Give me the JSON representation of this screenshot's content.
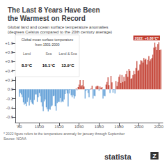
{
  "chart_data": {
    "type": "bar",
    "title": "The Last 8 Years Have Been\nthe Warmest on Record",
    "subtitle": "Global land and ocean surface temperature anomalies\n(degrees Celsius compared to the 20th century average)",
    "footnotes": [
      "* 2022 figure refers to the temperature anomaly for january through September",
      "Source: NOAA"
    ],
    "inset": {
      "title": "Global mean surface temperature\nfrom 1901-2000",
      "labels": [
        "Land",
        "Sea",
        "Land & Sea"
      ],
      "values": [
        "8.5°C",
        "16.1°C",
        "13.9°C"
      ]
    },
    "annotation": {
      "text": "2022: +0.86°C*",
      "color": "#c0392b"
    },
    "branding": "statista",
    "logo": "Z",
    "x": [
      1880,
      1881,
      1882,
      1883,
      1884,
      1885,
      1886,
      1887,
      1888,
      1889,
      1890,
      1891,
      1892,
      1893,
      1894,
      1895,
      1896,
      1897,
      1898,
      1899,
      1900,
      1901,
      1902,
      1903,
      1904,
      1905,
      1906,
      1907,
      1908,
      1909,
      1910,
      1911,
      1912,
      1913,
      1914,
      1915,
      1916,
      1917,
      1918,
      1919,
      1920,
      1921,
      1922,
      1923,
      1924,
      1925,
      1926,
      1927,
      1928,
      1929,
      1930,
      1931,
      1932,
      1933,
      1934,
      1935,
      1936,
      1937,
      1938,
      1939,
      1940,
      1941,
      1942,
      1943,
      1944,
      1945,
      1946,
      1947,
      1948,
      1949,
      1950,
      1951,
      1952,
      1953,
      1954,
      1955,
      1956,
      1957,
      1958,
      1959,
      1960,
      1961,
      1962,
      1963,
      1964,
      1965,
      1966,
      1967,
      1968,
      1969,
      1970,
      1971,
      1972,
      1973,
      1974,
      1975,
      1976,
      1977,
      1978,
      1979,
      1980,
      1981,
      1982,
      1983,
      1984,
      1985,
      1986,
      1987,
      1988,
      1989,
      1990,
      1991,
      1992,
      1993,
      1994,
      1995,
      1996,
      1997,
      1998,
      1999,
      2000,
      2001,
      2002,
      2003,
      2004,
      2005,
      2006,
      2007,
      2008,
      2009,
      2010,
      2011,
      2012,
      2013,
      2014,
      2015,
      2016,
      2017,
      2018,
      2019,
      2020,
      2021,
      2022
    ],
    "values": [
      -0.16,
      -0.08,
      -0.11,
      -0.17,
      -0.28,
      -0.33,
      -0.31,
      -0.36,
      -0.27,
      -0.18,
      -0.35,
      -0.23,
      -0.28,
      -0.31,
      -0.33,
      -0.23,
      -0.11,
      -0.11,
      -0.27,
      -0.17,
      -0.08,
      -0.15,
      -0.28,
      -0.37,
      -0.47,
      -0.26,
      -0.22,
      -0.39,
      -0.43,
      -0.48,
      -0.43,
      -0.44,
      -0.37,
      -0.35,
      -0.15,
      -0.14,
      -0.36,
      -0.46,
      -0.3,
      -0.27,
      -0.27,
      -0.19,
      -0.28,
      -0.26,
      -0.27,
      -0.22,
      -0.1,
      -0.02,
      -0.09,
      -0.37,
      -0.09,
      -0.01,
      -0.13,
      -0.17,
      -0.13,
      -0.2,
      -0.15,
      0.02,
      -0.02,
      0.05,
      0.1,
      0.2,
      0.07,
      0.09,
      0.2,
      0.06,
      -0.2,
      -0.03,
      -0.01,
      -0.08,
      -0.17,
      -0.01,
      0.02,
      0.08,
      -0.2,
      -0.14,
      -0.15,
      0.06,
      0.08,
      0.07,
      -0.03,
      0.06,
      0.03,
      0.05,
      -0.2,
      -0.14,
      -0.15,
      0.1,
      0.16,
      0.26,
      0.09,
      -0.08,
      0.29,
      0.15,
      -0.07,
      -0.01,
      -0.09,
      0.18,
      0.07,
      0.16,
      0.27,
      0.32,
      0.14,
      0.31,
      0.16,
      0.27,
      0.18,
      0.33,
      0.4,
      0.27,
      0.44,
      0.4,
      0.23,
      0.24,
      0.31,
      0.4,
      0.33,
      0.46,
      0.61,
      0.4,
      0.42,
      0.54,
      0.63,
      0.62,
      0.58,
      0.68,
      0.64,
      0.66,
      0.54,
      0.64,
      0.72,
      0.61,
      0.65,
      0.68,
      0.75,
      0.9,
      1.01,
      0.92,
      0.85,
      0.98,
      1.02,
      0.85,
      0.86
    ],
    "colors": [
      "#5b9bd5",
      "#5b9bd5",
      "#5b9bd5",
      "#5b9bd5",
      "#5b9bd5",
      "#5b9bd5",
      "#5b9bd5",
      "#5b9bd5",
      "#5b9bd5",
      "#5b9bd5",
      "#5b9bd5",
      "#5b9bd5",
      "#5b9bd5",
      "#5b9bd5",
      "#5b9bd5",
      "#5b9bd5",
      "#5b9bd5",
      "#5b9bd5",
      "#5b9bd5",
      "#5b9bd5",
      "#5b9bd5",
      "#5b9bd5",
      "#5b9bd5",
      "#5b9bd5",
      "#5b9bd5",
      "#5b9bd5",
      "#5b9bd5",
      "#5b9bd5",
      "#5b9bd5",
      "#5b9bd5",
      "#5b9bd5",
      "#5b9bd5",
      "#5b9bd5",
      "#5b9bd5",
      "#5b9bd5",
      "#5b9bd5",
      "#5b9bd5",
      "#5b9bd5",
      "#5b9bd5",
      "#5b9bd5",
      "#5b9bd5",
      "#5b9bd5",
      "#5b9bd5",
      "#5b9bd5",
      "#5b9bd5",
      "#5b9bd5",
      "#5b9bd5",
      "#5b9bd5",
      "#5b9bd5",
      "#5b9bd5",
      "#5b9bd5",
      "#5b9bd5",
      "#5b9bd5",
      "#5b9bd5",
      "#5b9bd5",
      "#5b9bd5",
      "#5b9bd5",
      "#c0392b",
      "#5b9bd5",
      "#c0392b",
      "#c0392b",
      "#c0392b",
      "#c0392b",
      "#c0392b",
      "#c0392b",
      "#c0392b",
      "#5b9bd5",
      "#5b9bd5",
      "#5b9bd5",
      "#5b9bd5",
      "#5b9bd5",
      "#5b9bd5",
      "#c0392b",
      "#c0392b",
      "#5b9bd5",
      "#5b9bd5",
      "#5b9bd5",
      "#c0392b",
      "#c0392b",
      "#c0392b",
      "#5b9bd5",
      "#c0392b",
      "#c0392b",
      "#c0392b",
      "#5b9bd5",
      "#5b9bd5",
      "#5b9bd5",
      "#c0392b",
      "#c0392b",
      "#c0392b",
      "#c0392b",
      "#5b9bd5",
      "#c0392b",
      "#c0392b",
      "#5b9bd5",
      "#5b9bd5",
      "#5b9bd5",
      "#c0392b",
      "#c0392b",
      "#c0392b",
      "#c0392b",
      "#c0392b",
      "#c0392b",
      "#c0392b",
      "#c0392b",
      "#c0392b",
      "#c0392b",
      "#c0392b",
      "#c0392b",
      "#c0392b",
      "#c0392b",
      "#c0392b",
      "#c0392b",
      "#c0392b",
      "#c0392b",
      "#c0392b",
      "#c0392b",
      "#c0392b",
      "#c0392b",
      "#c0392b",
      "#c0392b",
      "#c0392b",
      "#c0392b",
      "#c0392b",
      "#c0392b",
      "#c0392b",
      "#c0392b",
      "#c0392b",
      "#c0392b",
      "#c0392b",
      "#c0392b",
      "#c0392b",
      "#c0392b",
      "#c0392b",
      "#c0392b",
      "#c0392b",
      "#c0392b",
      "#c0392b",
      "#c0392b",
      "#c0392b",
      "#c0392b",
      "#c0392b",
      "#c0392b"
    ],
    "xlim": [
      1876,
      2024
    ],
    "xticks": [
      {
        "value": 1880,
        "label": "'80"
      },
      1900,
      1920,
      1940,
      1960,
      1980,
      2000,
      2020
    ],
    "ylim": [
      -0.72,
      1.18
    ],
    "yticks": [
      -0.6,
      -0.4,
      -0.2,
      {
        "value": 0.0,
        "label": "0.0"
      },
      {
        "value": 0.2,
        "label": "+0.2"
      },
      {
        "value": 0.4,
        "label": "+0.4"
      },
      {
        "value": 0.6,
        "label": "+0.6"
      },
      {
        "value": 0.8,
        "label": "+0.8"
      },
      {
        "value": 1.0,
        "label": "+1.0"
      }
    ],
    "grid": false
  }
}
